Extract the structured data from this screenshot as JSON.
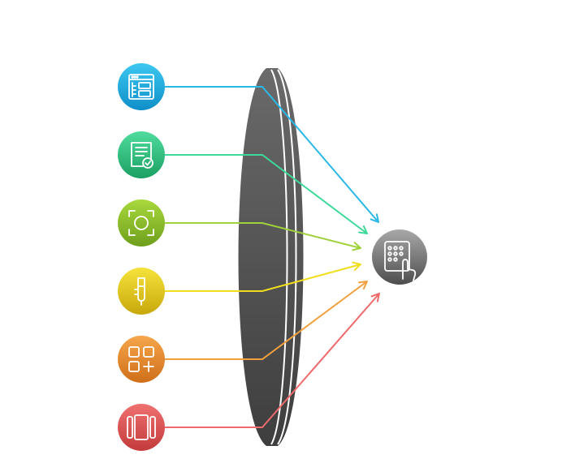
{
  "colors": {
    "background": "#ffffff",
    "lens_dark": "#3e3e3e",
    "lens_light": "#6a6a6a",
    "lens_stroke": "#ffffff",
    "target_light": "#a8a8a8",
    "target_dark": "#4e4e4e"
  },
  "sources": [
    {
      "icon": "layout-dashboard-icon",
      "color_top": "#3cc7f0",
      "color_bottom": "#0f8fc9",
      "line": "#2ab8e8"
    },
    {
      "icon": "checklist-document-icon",
      "color_top": "#4fdc9e",
      "color_bottom": "#1c9f63",
      "line": "#3dd99a"
    },
    {
      "icon": "focus-frame-icon",
      "color_top": "#a9d93c",
      "color_bottom": "#6e9f1c",
      "line": "#9fd13a"
    },
    {
      "icon": "capsule-probe-icon",
      "color_top": "#f5e33b",
      "color_bottom": "#c8a80b",
      "line": "#f0de1c"
    },
    {
      "icon": "add-grid-icon",
      "color_top": "#f5a54a",
      "color_bottom": "#cf6f1a",
      "line": "#f2a03f"
    },
    {
      "icon": "carousel-panels-icon",
      "color_top": "#f07070",
      "color_bottom": "#c33b3b",
      "line": "#ef6b6b"
    }
  ],
  "target": {
    "icon": "touch-keypad-icon"
  }
}
